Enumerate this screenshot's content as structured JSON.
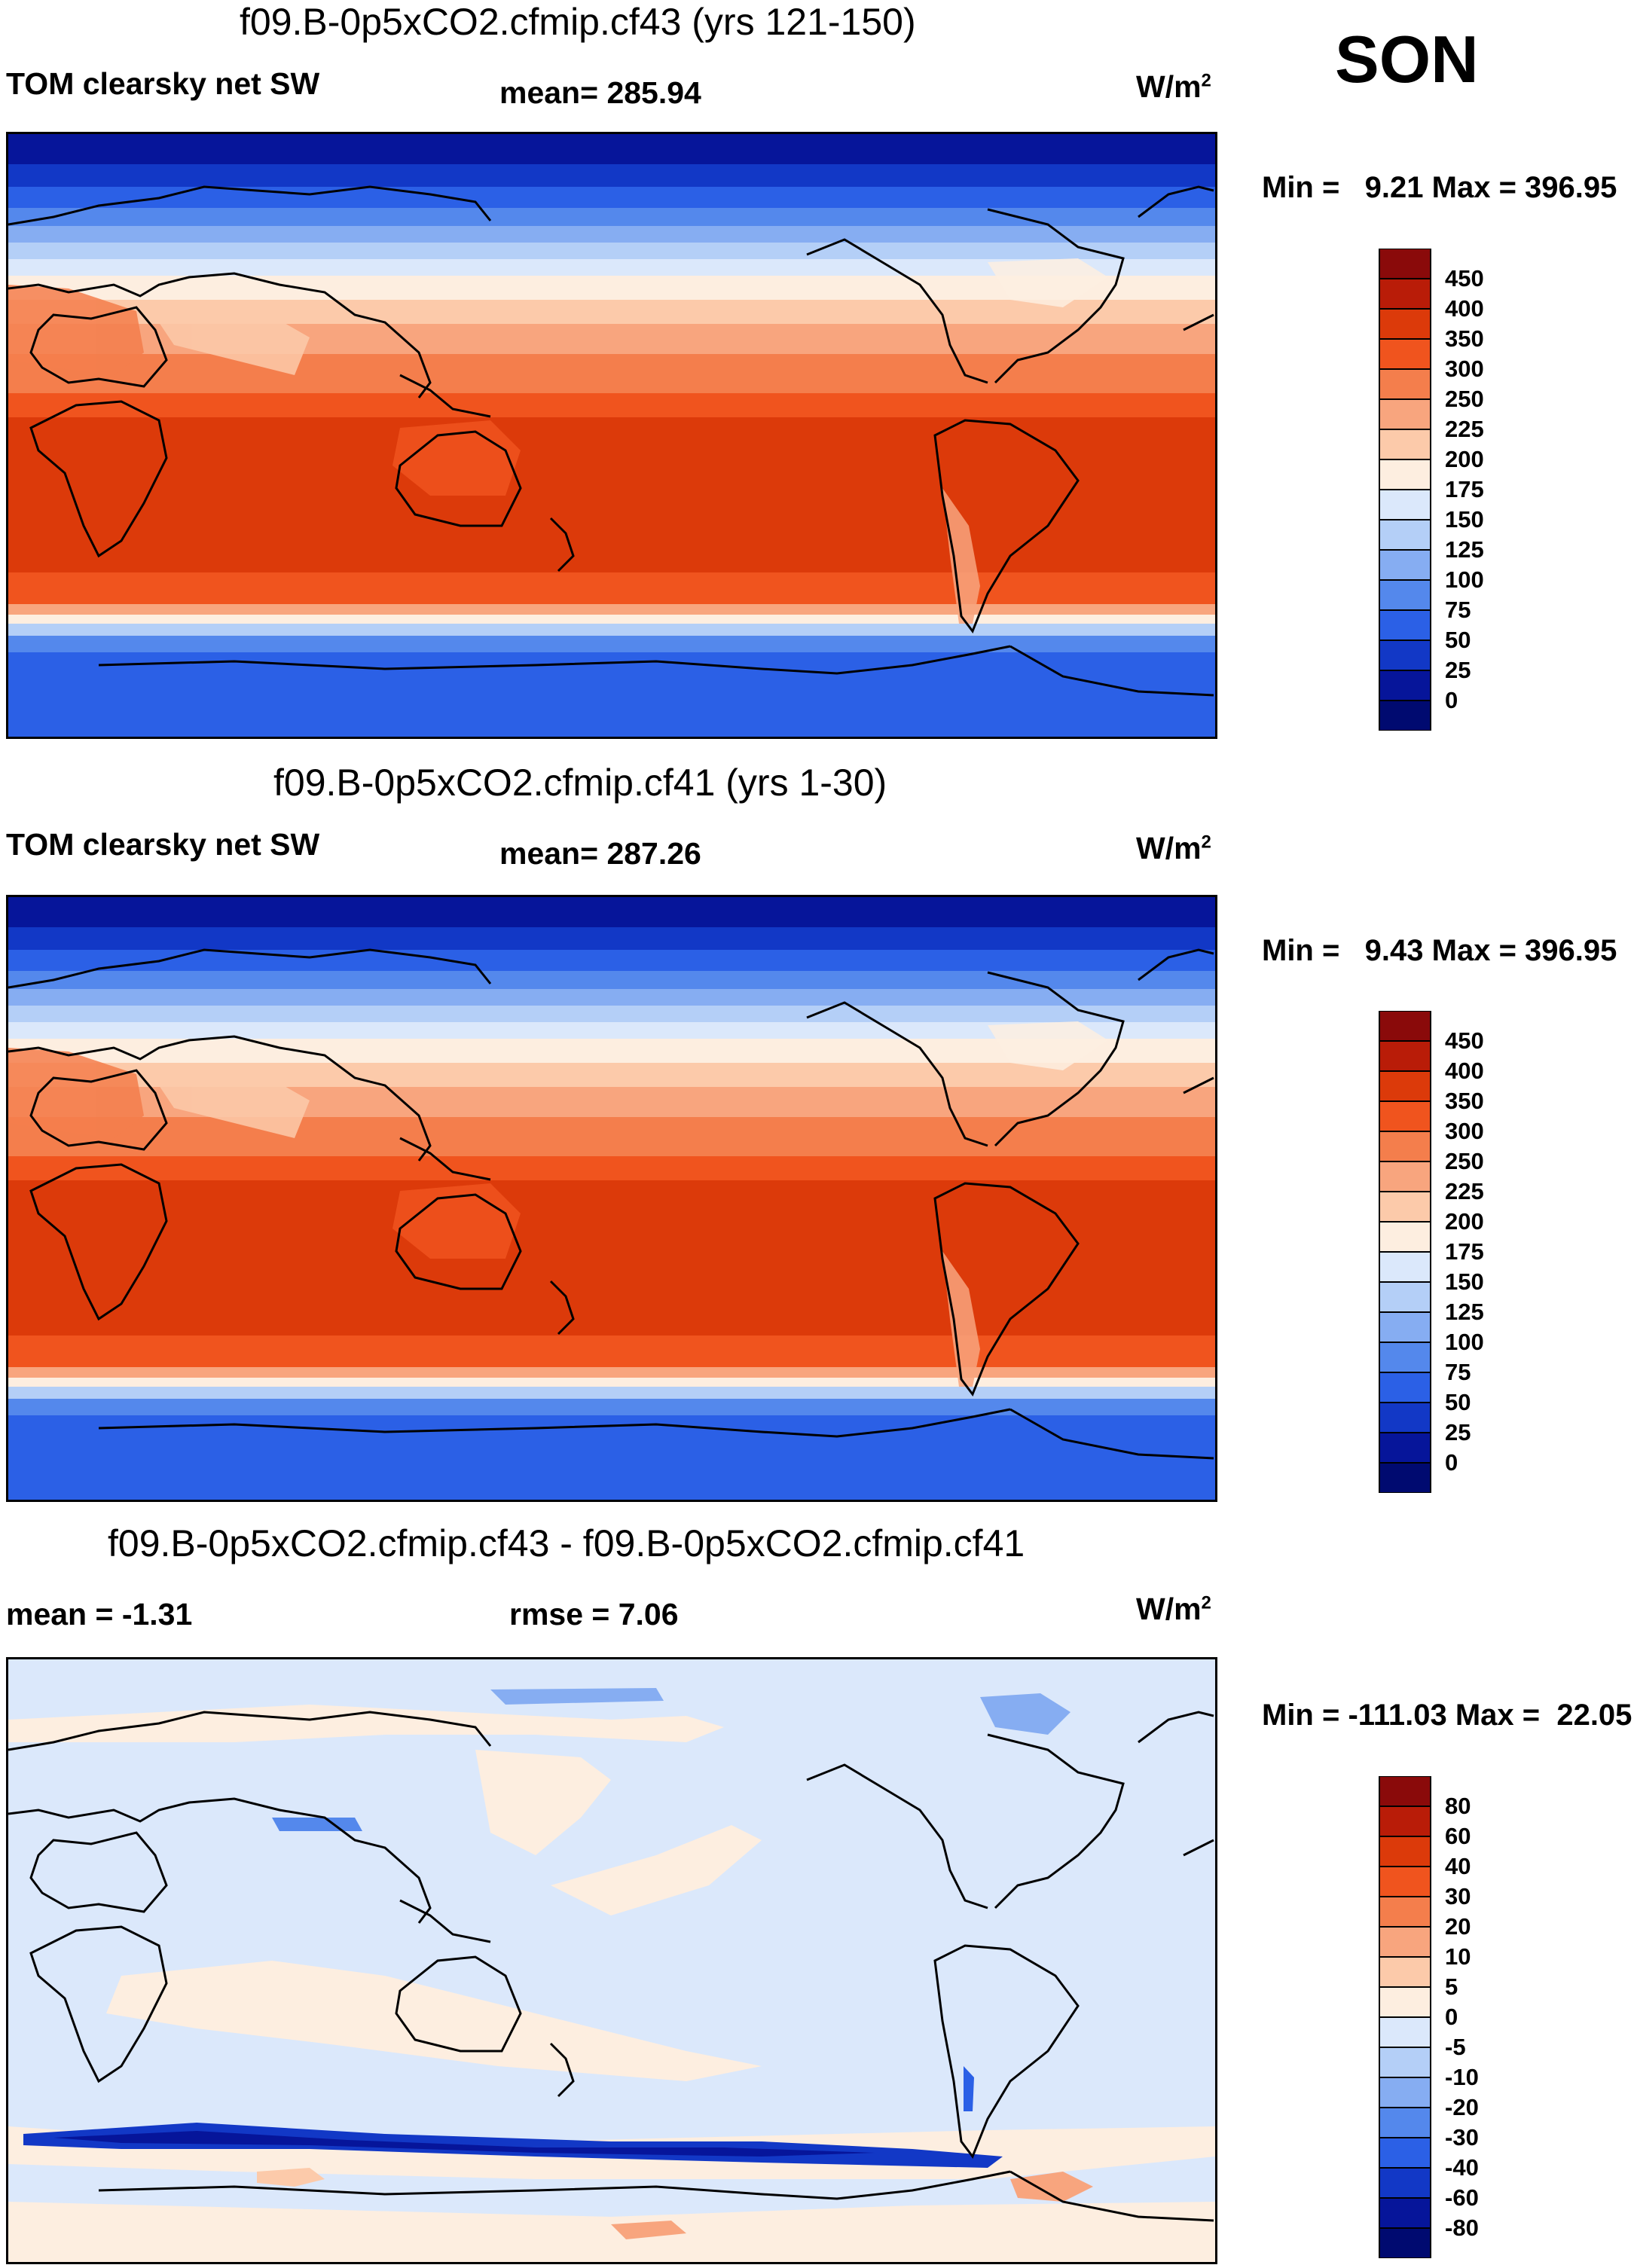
{
  "season": "SON",
  "panels": [
    {
      "title": "f09.B-0p5xCO2.cfmip.cf43 (yrs 121-150)",
      "left_label": "TOM clearsky net SW",
      "center_label": "mean= 285.94",
      "units_base": "W/m",
      "units_exp": "2",
      "minmax": "Min =   9.21 Max = 396.95",
      "colorbar": {
        "labels": [
          "450",
          "400",
          "350",
          "300",
          "250",
          "225",
          "200",
          "175",
          "150",
          "125",
          "100",
          "75",
          "50",
          "25",
          "0"
        ],
        "colors": [
          "#8a0a0a",
          "#b91c08",
          "#dc3a0a",
          "#f0541e",
          "#f47e4c",
          "#f8a57e",
          "#fccaaa",
          "#fdeee0",
          "#dbe8fb",
          "#b4cff7",
          "#86adf2",
          "#5488ec",
          "#2b60e6",
          "#1238c6",
          "#06159a",
          "#000a70"
        ]
      }
    },
    {
      "title": "f09.B-0p5xCO2.cfmip.cf41 (yrs 1-30)",
      "left_label": "TOM clearsky net SW",
      "center_label": "mean= 287.26",
      "units_base": "W/m",
      "units_exp": "2",
      "minmax": "Min =   9.43 Max = 396.95",
      "colorbar": {
        "labels": [
          "450",
          "400",
          "350",
          "300",
          "250",
          "225",
          "200",
          "175",
          "150",
          "125",
          "100",
          "75",
          "50",
          "25",
          "0"
        ],
        "colors": [
          "#8a0a0a",
          "#b91c08",
          "#dc3a0a",
          "#f0541e",
          "#f47e4c",
          "#f8a57e",
          "#fccaaa",
          "#fdeee0",
          "#dbe8fb",
          "#b4cff7",
          "#86adf2",
          "#5488ec",
          "#2b60e6",
          "#1238c6",
          "#06159a",
          "#000a70"
        ]
      }
    },
    {
      "title": "f09.B-0p5xCO2.cfmip.cf43 - f09.B-0p5xCO2.cfmip.cf41",
      "left_label": "mean =  -1.31",
      "center_label": "rmse =    7.06",
      "units_base": "W/m",
      "units_exp": "2",
      "minmax": "Min = -111.03 Max =  22.05",
      "colorbar": {
        "labels": [
          "80",
          "60",
          "40",
          "30",
          "20",
          "10",
          "5",
          "0",
          "-5",
          "-10",
          "-20",
          "-30",
          "-40",
          "-60",
          "-80"
        ],
        "colors": [
          "#8a0a0a",
          "#b91c08",
          "#dc3a0a",
          "#f0541e",
          "#f47e4c",
          "#f8a57e",
          "#fccaaa",
          "#fdeee0",
          "#dbe8fb",
          "#b4cff7",
          "#86adf2",
          "#5488ec",
          "#2b60e6",
          "#1238c6",
          "#06159a",
          "#000a70"
        ]
      }
    }
  ]
}
